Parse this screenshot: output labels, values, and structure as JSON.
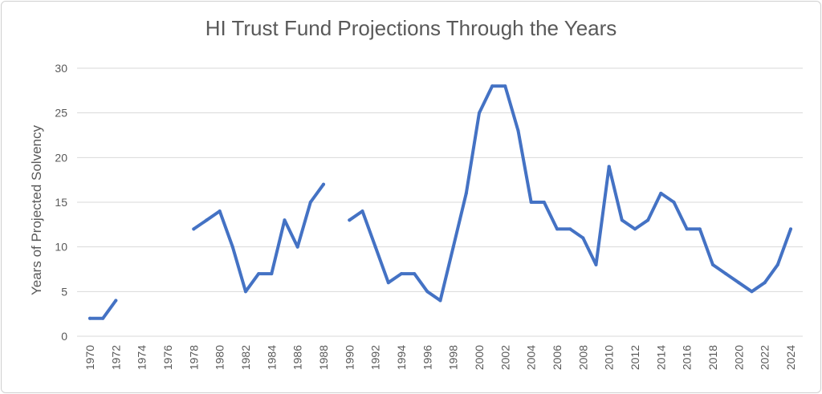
{
  "chart_data": {
    "type": "line",
    "title": "HI Trust Fund Projections Through the Years",
    "xlabel": "",
    "ylabel": "Years of Projected Solvency",
    "ylim": [
      0,
      30
    ],
    "yticks": [
      "0",
      "5",
      "10",
      "15",
      "20",
      "25",
      "30"
    ],
    "x": [
      1970,
      1971,
      1972,
      1973,
      1974,
      1975,
      1976,
      1977,
      1978,
      1979,
      1980,
      1981,
      1982,
      1983,
      1984,
      1985,
      1986,
      1987,
      1988,
      1989,
      1990,
      1991,
      1992,
      1993,
      1994,
      1995,
      1996,
      1997,
      1998,
      1999,
      2000,
      2001,
      2002,
      2003,
      2004,
      2005,
      2006,
      2007,
      2008,
      2009,
      2010,
      2011,
      2012,
      2013,
      2014,
      2015,
      2016,
      2017,
      2018,
      2019,
      2020,
      2021,
      2022,
      2023,
      2024
    ],
    "xticks": [
      "1970",
      "1972",
      "1974",
      "1976",
      "1978",
      "1980",
      "1982",
      "1984",
      "1986",
      "1988",
      "1990",
      "1992",
      "1994",
      "1996",
      "1998",
      "2000",
      "2002",
      "2004",
      "2006",
      "2008",
      "2010",
      "2012",
      "2014",
      "2016",
      "2018",
      "2020",
      "2022",
      "2024"
    ],
    "series": [
      {
        "values": [
          2,
          2,
          4,
          null,
          null,
          null,
          null,
          null,
          12,
          13,
          14,
          10,
          5,
          7,
          7,
          13,
          10,
          15,
          17,
          null,
          13,
          14,
          10,
          6,
          7,
          7,
          5,
          4,
          10,
          16,
          25,
          28,
          28,
          23,
          15,
          15,
          12,
          12,
          11,
          8,
          19,
          13,
          12,
          13,
          16,
          15,
          12,
          12,
          8,
          7,
          6,
          5,
          6,
          8,
          12
        ]
      }
    ],
    "grid": true,
    "legend": "none",
    "line_color": "#4472c4",
    "grid_color": "#d9d9d9",
    "text_color": "#595959"
  }
}
